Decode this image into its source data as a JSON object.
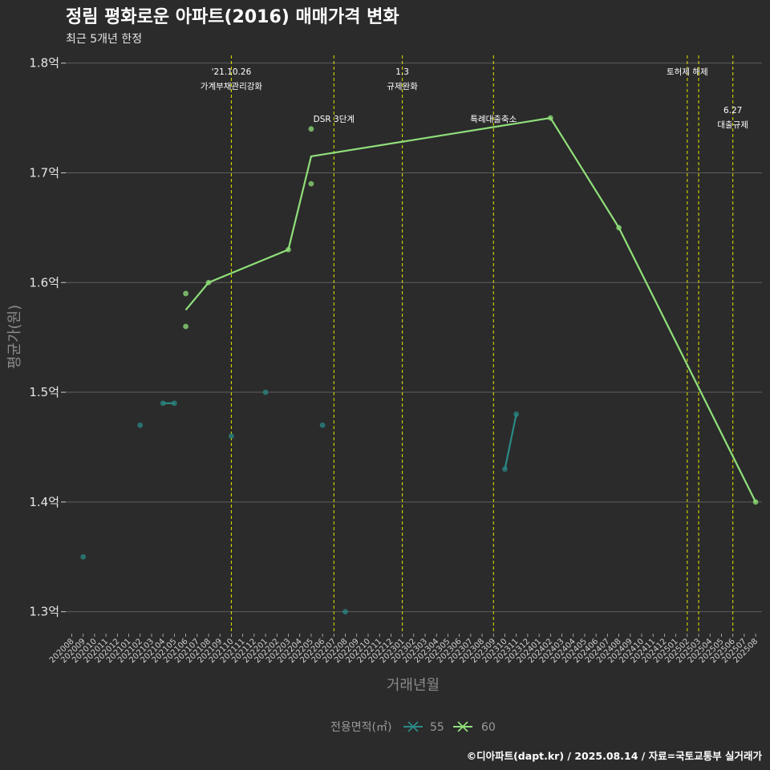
{
  "title": "정림 평화로운 아파트(2016) 매매가격 변화",
  "subtitle": "최근 5개년 한정",
  "caption": "©디아파트(dapt.kr) / 2025.08.14 / 자료=국토교통부 실거래가",
  "colors": {
    "background": "#2b2b2b",
    "grid": "#5e5e5e",
    "event_line": "#d4d400",
    "series_55": "#2a8a86",
    "series_60": "#90e07a"
  },
  "chart_data": {
    "type": "line",
    "xlabel": "거래년월",
    "ylabel": "평균가(원)",
    "ylim": [
      1.28,
      1.81
    ],
    "y_ticks": [
      {
        "value": 1.3,
        "label": "1.3억"
      },
      {
        "value": 1.4,
        "label": "1.4억"
      },
      {
        "value": 1.5,
        "label": "1.5억"
      },
      {
        "value": 1.6,
        "label": "1.6억"
      },
      {
        "value": 1.7,
        "label": "1.7억"
      },
      {
        "value": 1.8,
        "label": "1.8억"
      }
    ],
    "categories": [
      "202008",
      "202009",
      "202010",
      "202011",
      "202012",
      "202101",
      "202102",
      "202103",
      "202104",
      "202105",
      "202106",
      "202107",
      "202108",
      "202109",
      "202110",
      "202111",
      "202112",
      "202201",
      "202202",
      "202203",
      "202204",
      "202205",
      "202206",
      "202207",
      "202208",
      "202209",
      "202210",
      "202211",
      "202212",
      "202301",
      "202302",
      "202303",
      "202304",
      "202305",
      "202306",
      "202307",
      "202308",
      "202309",
      "202310",
      "202311",
      "202312",
      "202401",
      "202402",
      "202403",
      "202404",
      "202405",
      "202406",
      "202407",
      "202408",
      "202409",
      "202410",
      "202411",
      "202412",
      "202501",
      "202502",
      "202503",
      "202504",
      "202505",
      "202506",
      "202507",
      "202508"
    ],
    "series": [
      {
        "name": "55",
        "points": [
          {
            "x": "202009",
            "y": 1.35
          },
          {
            "x": "202102",
            "y": 1.47
          },
          {
            "x": "202104",
            "y": 1.49
          },
          {
            "x": "202105",
            "y": 1.49
          },
          {
            "x": "202110",
            "y": 1.46
          },
          {
            "x": "202201",
            "y": 1.5
          },
          {
            "x": "202206",
            "y": 1.47
          },
          {
            "x": "202208",
            "y": 1.3
          },
          {
            "x": "202310",
            "y": 1.43
          },
          {
            "x": "202311",
            "y": 1.48
          }
        ],
        "line": [
          {
            "x": "202104",
            "y": 1.49
          },
          {
            "x": "202105",
            "y": 1.49
          },
          {
            "x": "202310",
            "y": 1.43
          },
          {
            "x": "202311",
            "y": 1.48
          }
        ],
        "line_segments": [
          [
            0,
            1
          ],
          [
            2,
            3
          ]
        ]
      },
      {
        "name": "60",
        "points": [
          {
            "x": "202106",
            "y": 1.59
          },
          {
            "x": "202106",
            "y": 1.56
          },
          {
            "x": "202108",
            "y": 1.6
          },
          {
            "x": "202203",
            "y": 1.63
          },
          {
            "x": "202205",
            "y": 1.74
          },
          {
            "x": "202205",
            "y": 1.69
          },
          {
            "x": "202402",
            "y": 1.75
          },
          {
            "x": "202408",
            "y": 1.65
          },
          {
            "x": "202508",
            "y": 1.4
          }
        ],
        "line": [
          {
            "x": "202106",
            "y": 1.575
          },
          {
            "x": "202108",
            "y": 1.6
          },
          {
            "x": "202203",
            "y": 1.63
          },
          {
            "x": "202205",
            "y": 1.715
          },
          {
            "x": "202402",
            "y": 1.75
          },
          {
            "x": "202408",
            "y": 1.65
          },
          {
            "x": "202508",
            "y": 1.4
          }
        ],
        "line_segments": [
          [
            0,
            6
          ]
        ]
      }
    ],
    "events": [
      {
        "x": "202110",
        "label_lines": [
          "'21.10.26",
          "가계부채관리강화"
        ],
        "level": 1
      },
      {
        "x": "202207",
        "label_lines": [
          "DSR 3단계"
        ],
        "level": 2
      },
      {
        "x": "202301",
        "label_lines": [
          "1.3",
          "규제완화"
        ],
        "level": 1
      },
      {
        "x": "202309",
        "label_lines": [
          "특례대출축소"
        ],
        "level": 2
      },
      {
        "x": "202502",
        "label_lines": [
          "토허제 해제"
        ],
        "level": 1
      },
      {
        "x": "202503",
        "label_lines": [],
        "level": 0
      },
      {
        "x": "202506",
        "label_lines": [
          "6.27",
          "대출규제"
        ],
        "level": 2
      }
    ],
    "legend": {
      "title": "전용면적(㎡)",
      "position": "bottom",
      "items": [
        "55",
        "60"
      ]
    }
  }
}
